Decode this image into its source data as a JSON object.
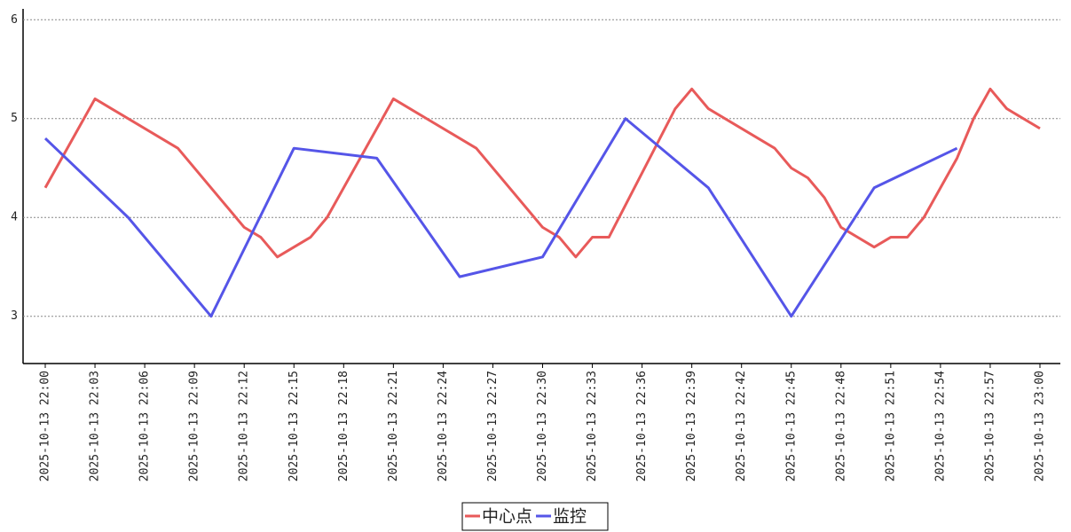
{
  "chart_data": {
    "type": "line",
    "xlim": [
      "2025-10-13 22:00",
      "2025-10-13 23:00"
    ],
    "xticks": [
      "2025-10-13 22:00",
      "2025-10-13 22:03",
      "2025-10-13 22:06",
      "2025-10-13 22:09",
      "2025-10-13 22:12",
      "2025-10-13 22:15",
      "2025-10-13 22:18",
      "2025-10-13 22:21",
      "2025-10-13 22:24",
      "2025-10-13 22:27",
      "2025-10-13 22:30",
      "2025-10-13 22:33",
      "2025-10-13 22:36",
      "2025-10-13 22:39",
      "2025-10-13 22:42",
      "2025-10-13 22:45",
      "2025-10-13 22:48",
      "2025-10-13 22:51",
      "2025-10-13 22:54",
      "2025-10-13 22:57",
      "2025-10-13 23:00"
    ],
    "ylim": [
      2.54,
      6.11
    ],
    "yticks": [
      3,
      4,
      5,
      6
    ],
    "grid": true,
    "legend": "bottom",
    "series": [
      {
        "name": "中心点",
        "color": "#e85a5a",
        "x": [
          "2025-10-13 22:00",
          "2025-10-13 22:03",
          "2025-10-13 22:08",
          "2025-10-13 22:10",
          "2025-10-13 22:12",
          "2025-10-13 22:13",
          "2025-10-13 22:14",
          "2025-10-13 22:15",
          "2025-10-13 22:16",
          "2025-10-13 22:17",
          "2025-10-13 22:20",
          "2025-10-13 22:21",
          "2025-10-13 22:23",
          "2025-10-13 22:26",
          "2025-10-13 22:30",
          "2025-10-13 22:31",
          "2025-10-13 22:32",
          "2025-10-13 22:33",
          "2025-10-13 22:34",
          "2025-10-13 22:38",
          "2025-10-13 22:39",
          "2025-10-13 22:40",
          "2025-10-13 22:44",
          "2025-10-13 22:45",
          "2025-10-13 22:46",
          "2025-10-13 22:47",
          "2025-10-13 22:48",
          "2025-10-13 22:50",
          "2025-10-13 22:51",
          "2025-10-13 22:52",
          "2025-10-13 22:53",
          "2025-10-13 22:55",
          "2025-10-13 22:56",
          "2025-10-13 22:57",
          "2025-10-13 22:58",
          "2025-10-13 23:00"
        ],
        "values": [
          4.3,
          5.2,
          4.7,
          4.3,
          3.9,
          3.8,
          3.6,
          3.7,
          3.8,
          4.0,
          4.9,
          5.2,
          5.0,
          4.7,
          3.9,
          3.8,
          3.6,
          3.8,
          3.8,
          5.1,
          5.3,
          5.1,
          4.7,
          4.5,
          4.4,
          4.2,
          3.9,
          3.7,
          3.8,
          3.8,
          4.0,
          4.6,
          5.0,
          5.3,
          5.1,
          4.9
        ]
      },
      {
        "name": "监控",
        "color": "#5555e8",
        "x": [
          "2025-10-13 22:00",
          "2025-10-13 22:05",
          "2025-10-13 22:10",
          "2025-10-13 22:15",
          "2025-10-13 22:20",
          "2025-10-13 22:25",
          "2025-10-13 22:30",
          "2025-10-13 22:35",
          "2025-10-13 22:40",
          "2025-10-13 22:45",
          "2025-10-13 22:50",
          "2025-10-13 22:55"
        ],
        "values": [
          4.8,
          4.0,
          3.0,
          4.7,
          4.6,
          3.4,
          3.6,
          5.0,
          4.3,
          3.0,
          4.3,
          4.7
        ]
      }
    ]
  }
}
